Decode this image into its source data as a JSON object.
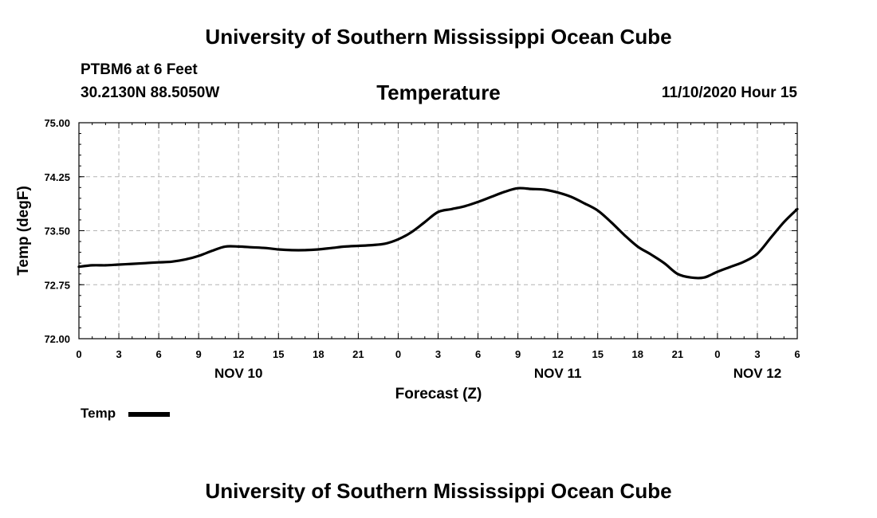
{
  "header": {
    "top_title": "University of Southern Mississippi Ocean Cube",
    "station": "PTBM6 at 6 Feet",
    "coordinates": "30.2130N 88.5050W",
    "chart_title": "Temperature",
    "date_hour": "11/10/2020 Hour 15"
  },
  "footer": {
    "bottom_title": "University of Southern Mississippi Ocean Cube"
  },
  "legend": {
    "label": "Temp",
    "color": "#000000"
  },
  "chart_data": {
    "type": "line",
    "title": "Temperature",
    "xlabel": "Forecast (Z)",
    "ylabel": "Temp (degF)",
    "x_unit": "hours since NOV 10 00Z",
    "xlim": [
      0,
      54
    ],
    "ylim": [
      72.0,
      75.0
    ],
    "y_ticks": [
      "72.00",
      "72.75",
      "73.50",
      "74.25",
      "75.00"
    ],
    "y_tick_values": [
      72.0,
      72.75,
      73.5,
      74.25,
      75.0
    ],
    "x_ticks": [
      "0",
      "3",
      "6",
      "9",
      "12",
      "15",
      "18",
      "21",
      "0",
      "3",
      "6",
      "9",
      "12",
      "15",
      "18",
      "21",
      "0",
      "3",
      "6"
    ],
    "x_tick_hours": [
      0,
      3,
      6,
      9,
      12,
      15,
      18,
      21,
      24,
      27,
      30,
      33,
      36,
      39,
      42,
      45,
      48,
      51,
      54
    ],
    "date_labels": [
      {
        "label": "NOV 10",
        "hour": 12
      },
      {
        "label": "NOV 11",
        "hour": 36
      },
      {
        "label": "NOV 12",
        "hour": 51
      }
    ],
    "grid": true,
    "series": [
      {
        "name": "Temp",
        "color": "#000000",
        "x": [
          0,
          1,
          2,
          3,
          4,
          5,
          6,
          7,
          8,
          9,
          10,
          11,
          12,
          13,
          14,
          15,
          16,
          17,
          18,
          19,
          20,
          21,
          22,
          23,
          24,
          25,
          26,
          27,
          28,
          29,
          30,
          31,
          32,
          33,
          34,
          35,
          36,
          37,
          38,
          39,
          40,
          41,
          42,
          43,
          44,
          45,
          46,
          47,
          48,
          49,
          50,
          51,
          52,
          53,
          54
        ],
        "values": [
          73.0,
          73.02,
          73.02,
          73.03,
          73.04,
          73.05,
          73.06,
          73.07,
          73.1,
          73.15,
          73.22,
          73.28,
          73.28,
          73.27,
          73.26,
          73.24,
          73.23,
          73.23,
          73.24,
          73.26,
          73.28,
          73.29,
          73.3,
          73.32,
          73.38,
          73.48,
          73.62,
          73.76,
          73.8,
          73.84,
          73.9,
          73.97,
          74.04,
          74.09,
          74.08,
          74.07,
          74.03,
          73.97,
          73.88,
          73.78,
          73.62,
          73.44,
          73.28,
          73.17,
          73.05,
          72.9,
          72.85,
          72.85,
          72.93,
          73.0,
          73.07,
          73.18,
          73.4,
          73.62,
          73.8
        ]
      }
    ]
  }
}
